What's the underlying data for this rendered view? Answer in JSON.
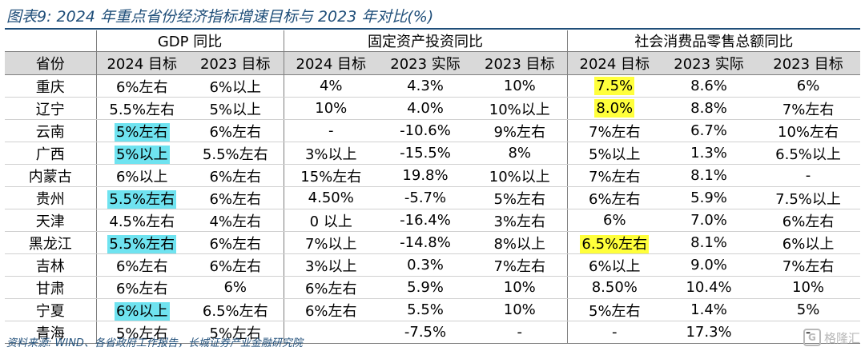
{
  "title": "图表9:  2024 年重点省份经济指标增速目标与 2023 年对比(%)",
  "groups": [
    "",
    "GDP 同比",
    "固定资产投资同比",
    "社会消费品零售总额同比"
  ],
  "headers": [
    "省份",
    "2024 目标",
    "2023 目标",
    "2024 目标",
    "2023 实际",
    "2023 目标",
    "2024 目标",
    "2023 实际",
    "2023 目标"
  ],
  "rows": [
    {
      "cells": [
        "重庆",
        "6%左右",
        "6%以上",
        "4%",
        "4.3%",
        "10%",
        "7.5%",
        "8.6%",
        "6%"
      ],
      "hl": {
        "6": "yellow"
      }
    },
    {
      "cells": [
        "辽宁",
        "5.5%左右",
        "5%以上",
        "10%",
        "4.0%",
        "10%以上",
        "8.0%",
        "8.8%",
        "7%左右"
      ],
      "hl": {
        "6": "yellow"
      }
    },
    {
      "cells": [
        "云南",
        "5%左右",
        "6%左右",
        "-",
        "-10.6%",
        "9%左右",
        "7%左右",
        "6.7%",
        "10%左右"
      ],
      "hl": {
        "1": "cyan"
      }
    },
    {
      "cells": [
        "广西",
        "5%以上",
        "5.5%左右",
        "3%以上",
        "-15.5%",
        "8%",
        "5%以上",
        "1.3%",
        "6.5%以上"
      ],
      "hl": {
        "1": "cyan"
      }
    },
    {
      "cells": [
        "内蒙古",
        "6%以上",
        "6%左右",
        "15%左右",
        "19.8%",
        "10%以上",
        "7%左右",
        "8.1%",
        "-"
      ],
      "hl": {}
    },
    {
      "cells": [
        "贵州",
        "5.5%左右",
        "6%左右",
        "4.50%",
        "-5.7%",
        "5%左右",
        "6%左右",
        "5.9%",
        "7.5%以上"
      ],
      "hl": {
        "1": "cyan"
      }
    },
    {
      "cells": [
        "天津",
        "4.5%左右",
        "4%左右",
        "0 以上",
        "-16.4%",
        "3%左右",
        "6%",
        "7.0%",
        "6%左右"
      ],
      "hl": {}
    },
    {
      "cells": [
        "黑龙江",
        "5.5%左右",
        "6%左右",
        "7%以上",
        "-14.8%",
        "8%以上",
        "6.5%左右",
        "8.1%",
        "6%以上"
      ],
      "hl": {
        "1": "cyan",
        "6": "yellow"
      }
    },
    {
      "cells": [
        "吉林",
        "6%左右",
        "6%左右",
        "3%以上",
        "0.3%",
        "7%左右",
        "6%以上",
        "9.0%",
        "7%左右"
      ],
      "hl": {}
    },
    {
      "cells": [
        "甘肃",
        "6%左右",
        "6%",
        "6%左右",
        "5.9%",
        "10%",
        "8.50%",
        "10.4%",
        "10%"
      ],
      "hl": {}
    },
    {
      "cells": [
        "宁夏",
        "6%以上",
        "6.5%左右",
        "6%左右",
        "5.5%",
        "10%",
        "5%左右",
        "1.4%",
        "5%"
      ],
      "hl": {
        "1": "cyan"
      }
    },
    {
      "cells": [
        "青海",
        "5%左右",
        "5%左右",
        "",
        "-7.5%",
        "-",
        "-",
        "17.3%",
        "-"
      ],
      "hl": {}
    }
  ],
  "source": "资料来源:  WIND、各省政府工作报告，长城证券产业金融研究院",
  "watermark": {
    "icon": "G",
    "text": "格隆汇"
  },
  "colors": {
    "title": "#1f4e79",
    "header_bg": "#d9d9d9",
    "highlight_cyan": "#6fe3f0",
    "highlight_yellow": "#ffff3b"
  }
}
